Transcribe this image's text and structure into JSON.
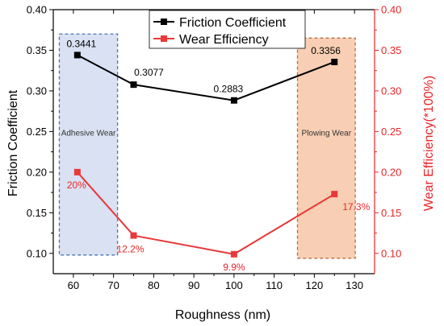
{
  "chart_data": {
    "type": "line",
    "xlabel": "Roughness (nm)",
    "ylabel_left": "Friction Coefficient",
    "ylabel_right": "Wear Efficiency(*100%)",
    "xlim": [
      55,
      135
    ],
    "ylim_left": [
      0.075,
      0.4
    ],
    "ylim_right": [
      0.075,
      0.4
    ],
    "x_ticks": [
      60,
      70,
      80,
      90,
      100,
      110,
      120,
      130
    ],
    "y_ticks": [
      0.1,
      0.15,
      0.2,
      0.25,
      0.3,
      0.35,
      0.4
    ],
    "y_tick_labels": [
      "0.10",
      "0.15",
      "0.20",
      "0.25",
      "0.30",
      "0.35",
      "0.40"
    ],
    "grid": false,
    "legend_position": "top-center",
    "colors": {
      "friction": "#000000",
      "wear": "#e8393a",
      "right_axis": "#e8262a"
    },
    "series": [
      {
        "name": "Friction Coefficient",
        "axis": "left",
        "x": [
          61,
          75,
          100,
          125
        ],
        "values": [
          0.3441,
          0.3077,
          0.2883,
          0.3356
        ],
        "labels": [
          "0.3441",
          "0.3077",
          "0.2883",
          "0.3356"
        ]
      },
      {
        "name": "Wear Efficiency",
        "axis": "right",
        "x": [
          61,
          75,
          100,
          125
        ],
        "values": [
          0.2,
          0.122,
          0.099,
          0.173
        ],
        "labels": [
          "20%",
          "12.2%",
          "9.9%",
          "17.3%"
        ]
      }
    ],
    "regions": [
      {
        "label": "Adhesive Wear",
        "x": [
          56.5,
          71
        ],
        "y": [
          0.098,
          0.37
        ],
        "fill": "#d9e1f2",
        "stroke": "#4a74b4"
      },
      {
        "label": "Plowing Wear",
        "x": [
          115.8,
          130.2
        ],
        "y": [
          0.094,
          0.365
        ],
        "fill": "#f8cfb4",
        "stroke": "#b86d3c"
      }
    ]
  }
}
